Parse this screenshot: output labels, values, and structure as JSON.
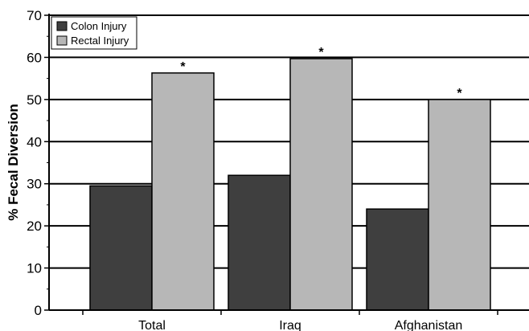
{
  "chart_data": {
    "type": "bar",
    "title": "",
    "xlabel": "",
    "ylabel": "% Fecal Diversion",
    "ylim": [
      0,
      70
    ],
    "yticks": [
      0,
      10,
      20,
      30,
      40,
      50,
      60,
      70
    ],
    "grid": true,
    "legend_position": "top-left",
    "categories": [
      "Total",
      "Iraq",
      "Afghanistan"
    ],
    "series": [
      {
        "name": "Colon Injury",
        "values": [
          29.5,
          32,
          24
        ],
        "color": "#3f3f3f"
      },
      {
        "name": "Rectal Injury",
        "values": [
          56.3,
          59.7,
          50
        ],
        "color": "#b7b7b7"
      }
    ],
    "annotations": [
      {
        "category": "Total",
        "series": "Rectal Injury",
        "text": "*"
      },
      {
        "category": "Iraq",
        "series": "Rectal Injury",
        "text": "*"
      },
      {
        "category": "Afghanistan",
        "series": "Rectal Injury",
        "text": "*"
      }
    ]
  }
}
